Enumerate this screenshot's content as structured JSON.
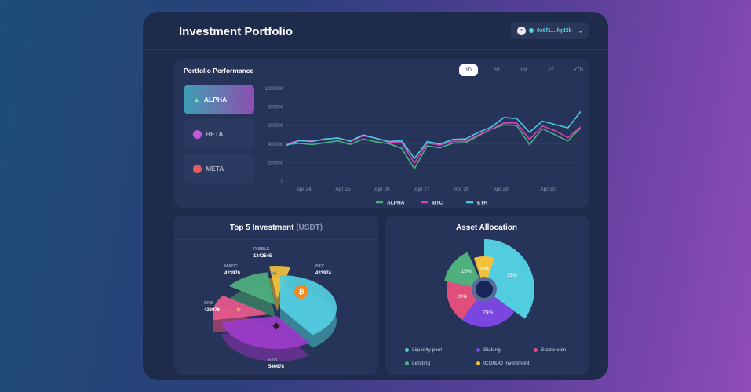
{
  "header": {
    "title": "Investment Portfolio",
    "wallet_address": "0x6f1....fqd2b",
    "wallet_icon": "link-icon",
    "chevron": "⌄"
  },
  "performance": {
    "title": "Portfolio Performance",
    "ranges": [
      "1D",
      "1W",
      "1M",
      "1Y",
      "YTD"
    ],
    "active_range": "1D",
    "assets": [
      {
        "label": "ALPHA",
        "active": true,
        "color": "#4fb0c8"
      },
      {
        "label": "BETA",
        "active": false,
        "color": "#c05ad8"
      },
      {
        "label": "META",
        "active": false,
        "color": "#e0605f"
      }
    ]
  },
  "chart_data": {
    "type": "line",
    "y_ticks": [
      "1000000",
      "800000",
      "600000",
      "400000",
      "200000",
      "0"
    ],
    "ylim": [
      0,
      1000000
    ],
    "x_ticks": [
      "Apr 24",
      "Apr 25",
      "Apr 26",
      "Apr 27",
      "Apr 28",
      "Apr 29",
      "Apr 30"
    ],
    "grid": true,
    "legend": "bottom",
    "series": [
      {
        "name": "ALPHA",
        "color": "#4caf7d",
        "values": [
          395000,
          408000,
          395000,
          415000,
          435000,
          397000,
          455000,
          425000,
          405000,
          355000,
          135000,
          380000,
          360000,
          410000,
          415000,
          490000,
          560000,
          610000,
          600000,
          395000,
          565000,
          500000,
          435000,
          575000
        ]
      },
      {
        "name": "BTC",
        "color": "#d93fb5",
        "values": [
          400000,
          440000,
          435000,
          450000,
          468000,
          428000,
          490000,
          465000,
          420000,
          420000,
          195000,
          410000,
          390000,
          430000,
          430000,
          500000,
          560000,
          630000,
          628000,
          450000,
          595000,
          545000,
          470000,
          585000
        ]
      },
      {
        "name": "ETH",
        "color": "#4cc9e0",
        "values": [
          386000,
          437000,
          428000,
          456000,
          465000,
          434000,
          499000,
          462000,
          428000,
          437000,
          245000,
          428000,
          400000,
          451000,
          456000,
          527000,
          583000,
          687000,
          676000,
          527000,
          648000,
          611000,
          575000,
          752000
        ]
      }
    ]
  },
  "top5": {
    "title": "Top 5 Investment",
    "unit": "(USDT)",
    "items": [
      {
        "name": "BTC",
        "value": "423974",
        "color": "#52cde0",
        "icon": "bitcoin-icon"
      },
      {
        "name": "ETH",
        "value": "546678",
        "color": "#9b3cc9",
        "icon": "ethereum-icon"
      },
      {
        "name": "BNB",
        "value": "423976",
        "color": "#e85a8c",
        "icon": "bnb-icon"
      },
      {
        "name": "MATIC",
        "value": "423976",
        "color": "#4fb07e",
        "icon": "polygon-icon"
      },
      {
        "name": "RIBBLE",
        "value": "1342545",
        "color": "#f2c13c",
        "icon": "ripple-icon"
      }
    ]
  },
  "allocation": {
    "title": "Asset Allocation",
    "items": [
      {
        "label": "Liquidity pool",
        "percent": 35,
        "color": "#52cde0"
      },
      {
        "label": "Staking",
        "percent": 25,
        "color": "#7b45e0"
      },
      {
        "label": "Stable coin",
        "percent": 20,
        "color": "#e04f7a"
      },
      {
        "label": "Lending",
        "percent": 15,
        "color": "#4fb07e"
      },
      {
        "label": "ICO/IDO Investment",
        "percent": 10,
        "color": "#f2c13c"
      }
    ]
  }
}
